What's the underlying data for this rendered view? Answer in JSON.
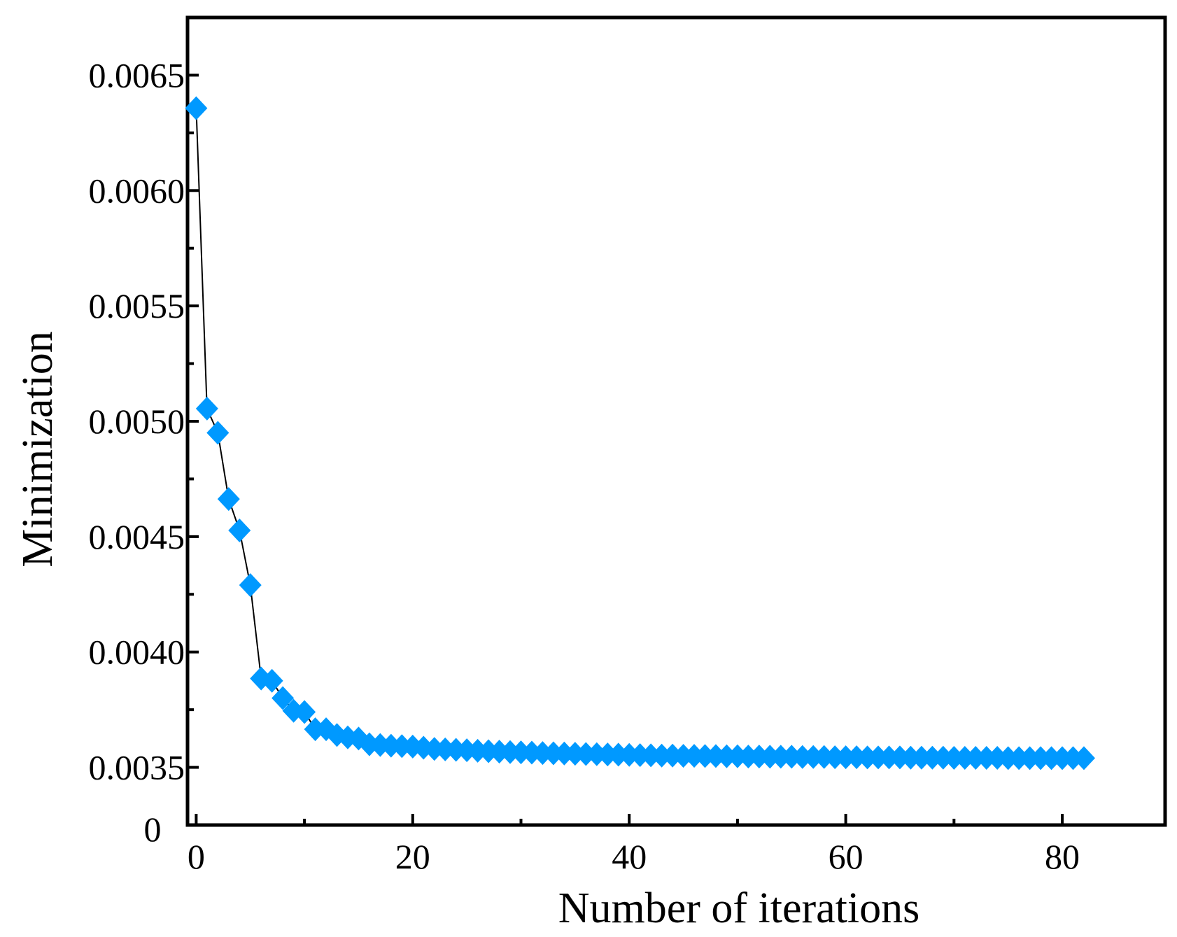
{
  "chart_data": {
    "type": "line",
    "title": "",
    "xlabel": "Number of iterations",
    "ylabel": "Minimization",
    "xlim": [
      -0.8,
      89.5
    ],
    "ylim": [
      0.00325,
      0.00675
    ],
    "x_ticks": [
      0,
      20,
      40,
      60,
      80
    ],
    "x_tick_labels": [
      "0",
      "20",
      "40",
      "60",
      "80"
    ],
    "y_ticks": [
      0.0035,
      0.004,
      0.0045,
      0.005,
      0.0055,
      0.006,
      0.0065
    ],
    "y_tick_labels": [
      "0.0035",
      "0.0040",
      "0.0045",
      "0.0050",
      "0.0055",
      "0.0060",
      "0.0065"
    ],
    "y_origin_label": "0",
    "grid": false,
    "marker": "diamond",
    "marker_color": "#0099ff",
    "line_color": "#000000",
    "series": [
      {
        "x": [
          0,
          1,
          2,
          3,
          4,
          5,
          6,
          7,
          8,
          9,
          10,
          11,
          12,
          13,
          14,
          15,
          16,
          17,
          18,
          19,
          20,
          21,
          22,
          23,
          24,
          25,
          26,
          27,
          28,
          29,
          30,
          31,
          32,
          33,
          34,
          35,
          36,
          37,
          38,
          39,
          40,
          41,
          42,
          43,
          44,
          45,
          46,
          47,
          48,
          49,
          50,
          51,
          52,
          53,
          54,
          55,
          56,
          57,
          58,
          59,
          60,
          61,
          62,
          63,
          64,
          65,
          66,
          67,
          68,
          69,
          70,
          71,
          72,
          73,
          74,
          75,
          76,
          77,
          78,
          79,
          80,
          81,
          82
        ],
        "y": [
          0.006357,
          0.005055,
          0.00495,
          0.004663,
          0.004527,
          0.00429,
          0.003885,
          0.003875,
          0.0038,
          0.003745,
          0.00374,
          0.003665,
          0.003665,
          0.00364,
          0.00363,
          0.003625,
          0.0036,
          0.003597,
          0.003594,
          0.003592,
          0.00359,
          0.003585,
          0.00358,
          0.003578,
          0.003576,
          0.003574,
          0.003572,
          0.00357,
          0.003568,
          0.003566,
          0.003565,
          0.003564,
          0.003562,
          0.003561,
          0.00356,
          0.003559,
          0.003558,
          0.003557,
          0.003556,
          0.003555,
          0.003554,
          0.003553,
          0.003552,
          0.003551,
          0.003551,
          0.00355,
          0.00355,
          0.003549,
          0.003549,
          0.003548,
          0.003548,
          0.003547,
          0.003547,
          0.003546,
          0.003546,
          0.003546,
          0.003545,
          0.003545,
          0.003545,
          0.003544,
          0.003544,
          0.003544,
          0.003543,
          0.003543,
          0.003543,
          0.003543,
          0.003542,
          0.003542,
          0.003542,
          0.003542,
          0.003541,
          0.003541,
          0.003541,
          0.003541,
          0.003541,
          0.00354,
          0.00354,
          0.00354,
          0.00354,
          0.00354,
          0.00354,
          0.00354,
          0.00354
        ]
      }
    ]
  }
}
